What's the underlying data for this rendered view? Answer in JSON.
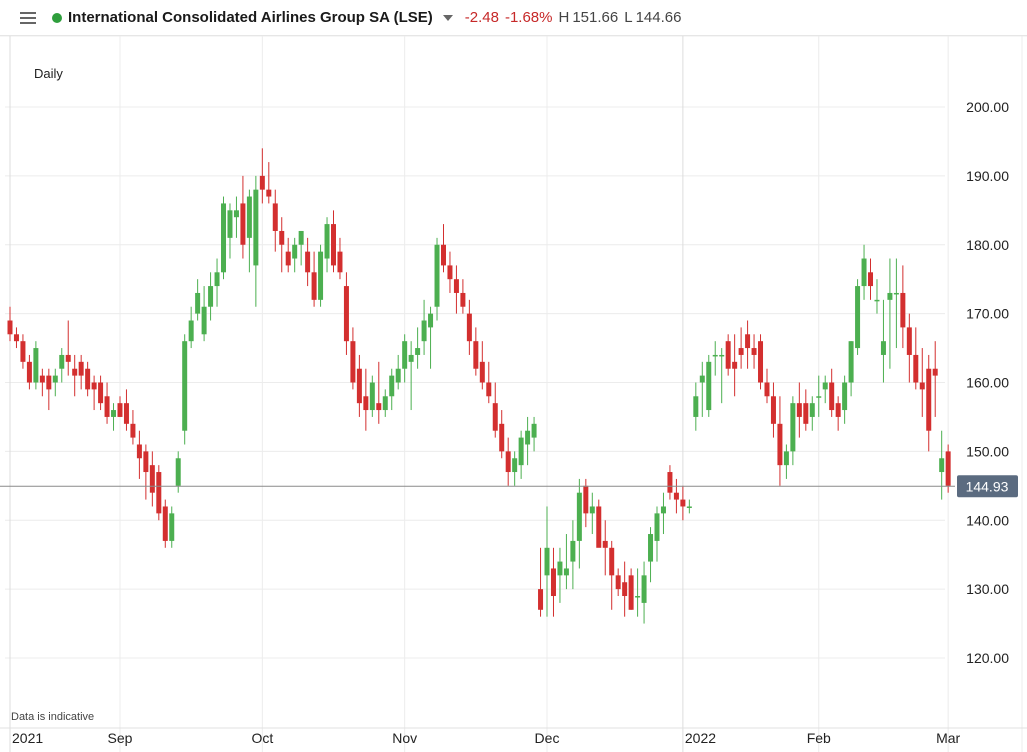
{
  "header": {
    "name": "International Consolidated Airlines Group SA (LSE)",
    "change": "-2.48",
    "change_pct": "-1.68%",
    "high_label": "H",
    "high": "151.66",
    "low_label": "L",
    "low": "144.66",
    "status_color": "#2e9e3c"
  },
  "interval": "Daily",
  "disclaimer": "Data is indicative",
  "colors": {
    "up": "#4caf50",
    "down": "#d32f2f",
    "price_badge": "#5b6b80"
  },
  "chart_data": {
    "type": "candlestick",
    "title": "",
    "y_axis": {
      "min": 110,
      "max": 210,
      "ticks": [
        "120.00",
        "130.00",
        "140.00",
        "150.00",
        "160.00",
        "170.00",
        "180.00",
        "190.00",
        "200.00"
      ],
      "position": "right"
    },
    "x_axis": {
      "labels": [
        {
          "label": "2021",
          "bar": 0
        },
        {
          "label": "Sep",
          "bar": 17
        },
        {
          "label": "Oct",
          "bar": 39
        },
        {
          "label": "Nov",
          "bar": 61
        },
        {
          "label": "Dec",
          "bar": 83
        },
        {
          "label": "2022",
          "bar": 104
        },
        {
          "label": "Feb",
          "bar": 125
        },
        {
          "label": "Mar",
          "bar": 145
        }
      ]
    },
    "last_price": "144.93",
    "grid": true,
    "candles": [
      [
        169,
        171,
        166,
        167
      ],
      [
        167,
        168,
        165,
        166
      ],
      [
        166,
        167,
        162,
        163
      ],
      [
        163,
        164,
        159,
        160
      ],
      [
        160,
        166,
        159,
        165
      ],
      [
        161,
        162,
        158,
        160
      ],
      [
        161,
        162,
        156,
        159
      ],
      [
        160,
        162,
        158,
        161
      ],
      [
        162,
        165,
        160,
        164
      ],
      [
        164,
        169,
        161,
        163
      ],
      [
        162,
        164,
        158,
        161
      ],
      [
        163,
        164,
        159,
        161
      ],
      [
        162,
        163,
        158,
        159
      ],
      [
        160,
        161,
        156,
        159
      ],
      [
        160,
        161,
        156,
        157
      ],
      [
        158,
        160,
        154,
        155
      ],
      [
        155,
        157,
        153,
        156
      ],
      [
        157,
        158,
        155,
        155
      ],
      [
        157,
        159,
        153,
        154
      ],
      [
        154,
        156,
        151,
        152
      ],
      [
        151,
        153,
        146,
        149
      ],
      [
        150,
        151,
        143,
        147
      ],
      [
        148,
        150,
        142,
        144
      ],
      [
        147,
        148,
        140,
        141
      ],
      [
        142,
        143,
        136,
        137
      ],
      [
        137,
        142,
        136,
        141
      ],
      [
        145,
        150,
        144,
        149
      ],
      [
        153,
        167,
        151,
        166
      ],
      [
        166,
        171,
        165,
        169
      ],
      [
        170,
        175,
        169,
        173
      ],
      [
        167,
        174,
        166,
        171
      ],
      [
        171,
        176,
        169,
        174
      ],
      [
        174,
        178,
        171,
        176
      ],
      [
        176,
        187,
        175,
        186
      ],
      [
        181,
        186,
        178,
        185
      ],
      [
        184,
        187,
        181,
        185
      ],
      [
        186,
        190,
        178,
        180
      ],
      [
        181,
        188,
        176,
        187
      ],
      [
        177,
        190,
        171,
        188
      ],
      [
        190,
        194,
        186,
        188
      ],
      [
        188,
        192,
        186,
        187
      ],
      [
        186,
        188,
        179,
        182
      ],
      [
        182,
        184,
        176,
        180
      ],
      [
        179,
        181,
        176,
        177
      ],
      [
        178,
        181,
        176,
        180
      ],
      [
        180,
        182,
        177,
        182
      ],
      [
        179,
        181,
        174,
        176
      ],
      [
        176,
        179,
        171,
        172
      ],
      [
        172,
        180,
        171,
        179
      ],
      [
        178,
        184,
        176,
        183
      ],
      [
        183,
        185,
        176,
        177
      ],
      [
        179,
        181,
        175,
        176
      ],
      [
        174,
        176,
        164,
        166
      ],
      [
        166,
        168,
        159,
        160
      ],
      [
        162,
        164,
        155,
        157
      ],
      [
        158,
        162,
        153,
        156
      ],
      [
        156,
        161,
        155,
        160
      ],
      [
        157,
        163,
        154,
        156
      ],
      [
        156,
        159,
        155,
        158
      ],
      [
        158,
        162,
        156,
        161
      ],
      [
        160,
        164,
        159,
        162
      ],
      [
        162,
        167,
        160,
        166
      ],
      [
        163,
        166,
        156,
        164
      ],
      [
        164,
        168,
        162,
        165
      ],
      [
        166,
        172,
        164,
        169
      ],
      [
        168,
        171,
        162,
        170
      ],
      [
        171,
        181,
        169,
        180
      ],
      [
        180,
        183,
        176,
        177
      ],
      [
        177,
        179,
        173,
        175
      ],
      [
        175,
        177,
        170,
        173
      ],
      [
        173,
        175,
        170,
        171
      ],
      [
        170,
        172,
        164,
        166
      ],
      [
        166,
        168,
        161,
        162
      ],
      [
        163,
        166,
        159,
        160
      ],
      [
        160,
        163,
        157,
        158
      ],
      [
        157,
        160,
        152,
        153
      ],
      [
        154,
        156,
        149,
        150
      ],
      [
        150,
        152,
        145,
        147
      ],
      [
        147,
        150,
        145,
        149
      ],
      [
        148,
        153,
        146,
        152
      ],
      [
        151,
        155,
        148,
        153
      ],
      [
        152,
        155,
        150,
        154
      ],
      [
        130,
        136,
        126,
        127
      ],
      [
        132,
        142,
        126,
        136
      ],
      [
        133,
        136,
        126,
        129
      ],
      [
        132,
        136,
        128,
        134
      ],
      [
        132,
        138,
        130,
        133
      ],
      [
        134,
        140,
        130,
        137
      ],
      [
        137,
        146,
        133,
        144
      ],
      [
        145,
        146,
        139,
        141
      ],
      [
        141,
        144,
        138,
        142
      ],
      [
        142,
        143,
        137,
        136
      ],
      [
        137,
        140,
        132,
        136
      ],
      [
        136,
        137,
        127,
        132
      ],
      [
        132,
        133,
        129,
        130
      ],
      [
        131,
        134,
        126,
        129
      ],
      [
        132,
        133,
        127,
        127
      ],
      [
        129,
        133,
        126,
        129
      ],
      [
        128,
        134,
        125,
        132
      ],
      [
        134,
        139,
        131,
        138
      ],
      [
        137,
        142,
        134,
        141
      ],
      [
        141,
        144,
        138,
        142
      ],
      [
        147,
        148,
        143,
        144
      ],
      [
        144,
        146,
        141,
        143
      ],
      [
        143,
        145,
        140,
        142
      ],
      [
        142,
        143,
        141,
        142
      ],
      [
        155,
        160,
        153,
        158
      ],
      [
        160,
        163,
        155,
        161
      ],
      [
        156,
        164,
        155,
        163
      ],
      [
        164,
        166,
        161,
        164
      ],
      [
        164,
        165,
        157,
        164
      ],
      [
        166,
        167,
        161,
        162
      ],
      [
        163,
        167,
        158,
        162
      ],
      [
        165,
        168,
        162,
        164
      ],
      [
        167,
        169,
        162,
        165
      ],
      [
        165,
        167,
        162,
        164
      ],
      [
        166,
        167,
        159,
        160
      ],
      [
        160,
        162,
        157,
        158
      ],
      [
        158,
        160,
        152,
        154
      ],
      [
        154,
        158,
        145,
        148
      ],
      [
        148,
        151,
        146,
        150
      ],
      [
        150,
        158,
        148,
        157
      ],
      [
        157,
        160,
        152,
        155
      ],
      [
        157,
        159,
        153,
        154
      ],
      [
        155,
        158,
        153,
        157
      ],
      [
        158,
        161,
        155,
        158
      ],
      [
        159,
        161,
        157,
        160
      ],
      [
        160,
        162,
        155,
        156
      ],
      [
        157,
        158,
        153,
        155
      ],
      [
        156,
        161,
        154,
        160
      ],
      [
        160,
        166,
        158,
        166
      ],
      [
        165,
        175,
        164,
        174
      ],
      [
        174,
        180,
        172,
        178
      ],
      [
        176,
        178,
        172,
        174
      ],
      [
        172,
        175,
        170,
        172
      ],
      [
        164,
        172,
        160,
        166
      ],
      [
        172,
        178,
        162,
        173
      ],
      [
        173,
        178,
        165,
        173
      ],
      [
        173,
        177,
        165,
        168
      ],
      [
        168,
        170,
        160,
        164
      ],
      [
        164,
        168,
        159,
        160
      ],
      [
        160,
        165,
        155,
        159
      ],
      [
        162,
        164,
        150,
        153
      ],
      [
        162,
        166,
        155,
        161
      ],
      [
        147,
        153,
        143,
        149
      ],
      [
        150,
        151,
        144,
        145
      ]
    ]
  }
}
